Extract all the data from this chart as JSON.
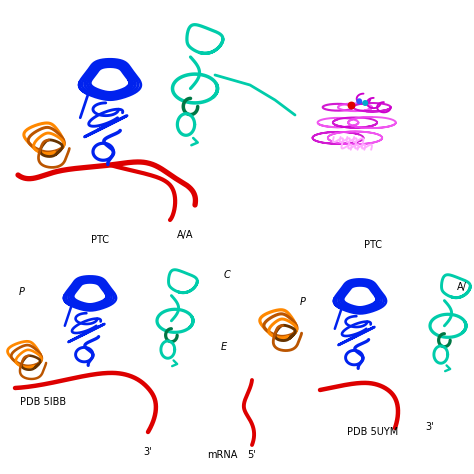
{
  "background_color": "#ffffff",
  "colors": {
    "blue": "#0022ee",
    "cyan": "#00ccaa",
    "dark_green": "#007744",
    "red": "#dd0000",
    "orange": "#ff8800",
    "dark_orange": "#bb5500",
    "brown": "#663300",
    "magenta": "#cc00cc",
    "pink": "#ee44ee",
    "light_pink": "#ffaaff",
    "teal_blue": "#00aacc"
  },
  "labels": {
    "ptc": "PTC",
    "aa_a": "A/A",
    "p": "P",
    "pdb5ibb": "PDB 5IBB",
    "three_prime_bl": "3'",
    "c": "C",
    "e": "E",
    "mrna": "mRNA",
    "five_prime": "5'",
    "ptc2": "PTC",
    "p2": "P",
    "aa_slash": "A/",
    "pdb5uym": "PDB 5UYM",
    "three_prime_br": "3'"
  },
  "font_size": 7
}
